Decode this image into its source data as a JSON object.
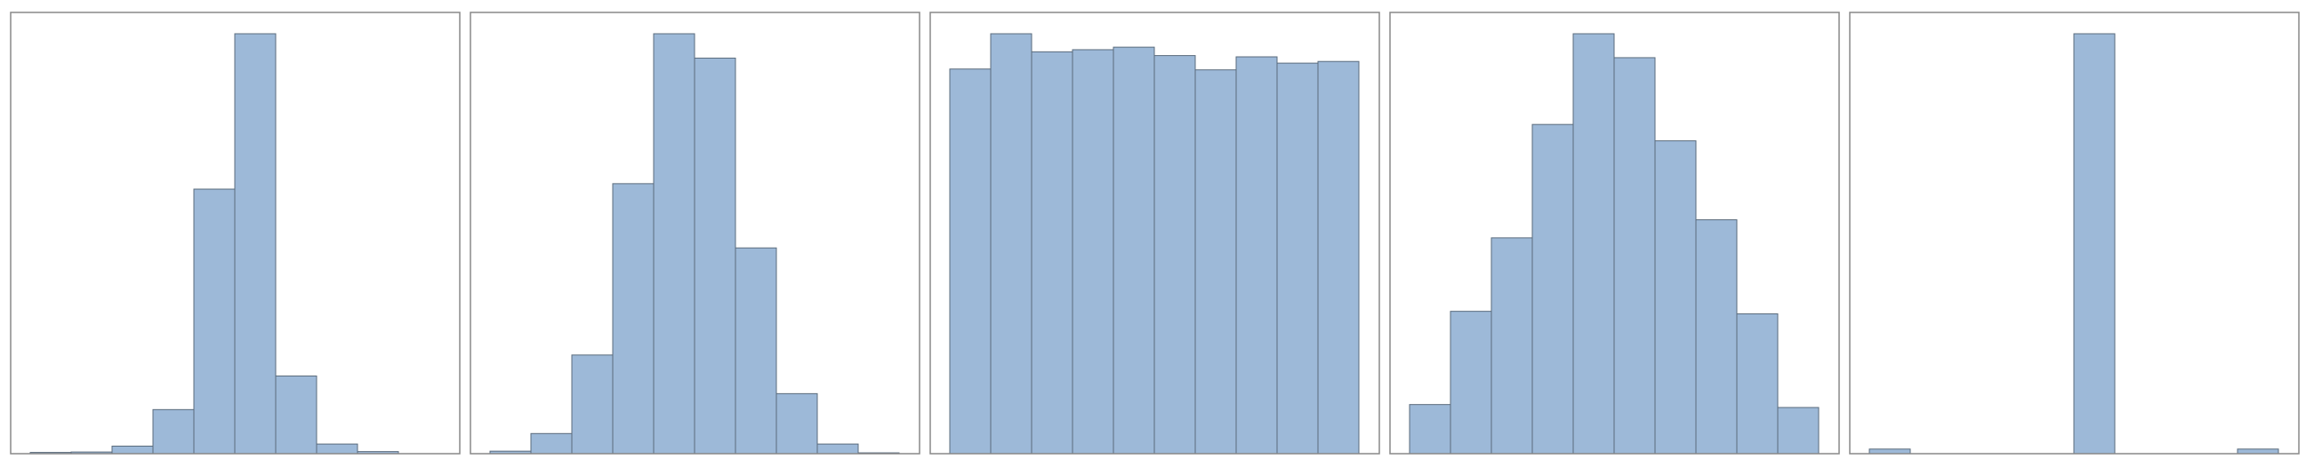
{
  "chart_data": [
    {
      "type": "bar",
      "bins": 10,
      "values": [
        0.003,
        0.004,
        0.018,
        0.105,
        0.63,
        1.0,
        0.185,
        0.023,
        0.005,
        0.0
      ],
      "ylim": [
        0,
        1.0
      ],
      "grid": false,
      "title": "",
      "xlabel": "",
      "ylabel": ""
    },
    {
      "type": "bar",
      "bins": 10,
      "values": [
        0.006,
        0.048,
        0.235,
        0.643,
        1.0,
        0.942,
        0.49,
        0.143,
        0.023,
        0.002
      ],
      "ylim": [
        0,
        1.0
      ],
      "grid": false,
      "title": "",
      "xlabel": "",
      "ylabel": ""
    },
    {
      "type": "bar",
      "bins": 10,
      "values": [
        0.916,
        1.0,
        0.957,
        0.962,
        0.968,
        0.948,
        0.914,
        0.945,
        0.93,
        0.934
      ],
      "ylim": [
        0,
        1.0
      ],
      "grid": false,
      "title": "",
      "xlabel": "",
      "ylabel": ""
    },
    {
      "type": "bar",
      "bins": 10,
      "values": [
        0.117,
        0.339,
        0.514,
        0.784,
        1.0,
        0.943,
        0.745,
        0.557,
        0.333,
        0.11
      ],
      "ylim": [
        0,
        1.0
      ],
      "grid": false,
      "title": "",
      "xlabel": "",
      "ylabel": ""
    },
    {
      "type": "bar",
      "bins": 10,
      "values": [
        0.011,
        0.0,
        0.0,
        0.0,
        0.0,
        1.0,
        0.0,
        0.0,
        0.0,
        0.011
      ],
      "ylim": [
        0,
        1.0
      ],
      "grid": false,
      "title": "",
      "xlabel": "",
      "ylabel": ""
    }
  ],
  "style": {
    "bar_fill": "#9db9d8",
    "bar_stroke": "#5a6b7c",
    "frame_stroke": "#888888",
    "background": "#ffffff"
  }
}
